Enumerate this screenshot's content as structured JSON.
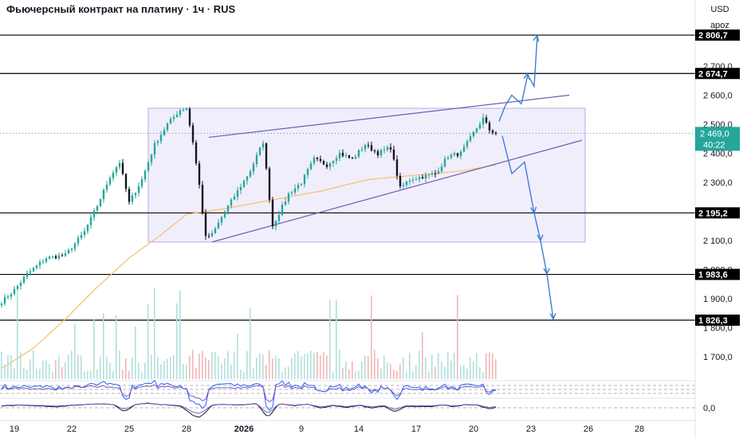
{
  "header": {
    "title": "Фьючерсный контракт на платину · 1ч · RUS",
    "currency": "USD",
    "scale_mode": "apoz"
  },
  "colors": {
    "up": "#26a69a",
    "down": "#131722",
    "ma": "#f5c06b",
    "channel": "#6b5fb5",
    "rect_fill": "#ece8fb",
    "rect_stroke": "#b7abe6",
    "arrow": "#3d7fd6",
    "level": "#000000",
    "last_price_bg": "#26a69a",
    "volume_up": "#b2dfdb",
    "volume_down": "#f5b5b5",
    "osc_price": "#131722",
    "osc_purple": "#7e57c2",
    "osc_blue": "#2962ff"
  },
  "chart_data": {
    "type": "candlestick",
    "y_axis": {
      "min": 1640,
      "max": 2900,
      "ticks": [
        "1 700,0",
        "1 800,0",
        "1 900,0",
        "2 000,0",
        "2 100,0",
        "2 300,0",
        "2 400,0",
        "2 500,0",
        "2 600,0",
        "2 700,0"
      ],
      "tick_values": [
        1700,
        1800,
        1900,
        2000,
        2100,
        2300,
        2400,
        2500,
        2600,
        2700
      ]
    },
    "x_axis": {
      "labels": [
        "19",
        "22",
        "25",
        "28",
        "2026",
        "9",
        "14",
        "17",
        "20",
        "23",
        "26",
        "28"
      ],
      "label_bar_index": [
        4,
        22,
        40,
        58,
        76,
        94,
        112,
        130,
        148,
        166,
        184,
        200
      ]
    },
    "horizontal_levels": [
      {
        "value": 2806.7,
        "label": "2 806,7"
      },
      {
        "value": 2674.7,
        "label": "2 674,7"
      },
      {
        "value": 2195.2,
        "label": "2 195,2"
      },
      {
        "value": 1983.6,
        "label": "1 983,6"
      },
      {
        "value": 1826.3,
        "label": "1 826,3"
      }
    ],
    "last_price": {
      "value": 2469.0,
      "label": "2 469,0",
      "countdown": "40:22"
    },
    "key_points": [
      {
        "i": 0,
        "v": 1890
      },
      {
        "i": 4,
        "v": 1930
      },
      {
        "i": 8,
        "v": 1985
      },
      {
        "i": 14,
        "v": 2040
      },
      {
        "i": 20,
        "v": 2050
      },
      {
        "i": 26,
        "v": 2130
      },
      {
        "i": 30,
        "v": 2220
      },
      {
        "i": 34,
        "v": 2320
      },
      {
        "i": 37,
        "v": 2370
      },
      {
        "i": 40,
        "v": 2230
      },
      {
        "i": 44,
        "v": 2310
      },
      {
        "i": 48,
        "v": 2430
      },
      {
        "i": 52,
        "v": 2500
      },
      {
        "i": 56,
        "v": 2550
      },
      {
        "i": 58,
        "v": 2555
      },
      {
        "i": 60,
        "v": 2440
      },
      {
        "i": 62,
        "v": 2290
      },
      {
        "i": 64,
        "v": 2110
      },
      {
        "i": 66,
        "v": 2120
      },
      {
        "i": 70,
        "v": 2200
      },
      {
        "i": 74,
        "v": 2270
      },
      {
        "i": 78,
        "v": 2340
      },
      {
        "i": 82,
        "v": 2440
      },
      {
        "i": 85,
        "v": 2150
      },
      {
        "i": 90,
        "v": 2260
      },
      {
        "i": 94,
        "v": 2300
      },
      {
        "i": 98,
        "v": 2380
      },
      {
        "i": 102,
        "v": 2360
      },
      {
        "i": 106,
        "v": 2400
      },
      {
        "i": 110,
        "v": 2380
      },
      {
        "i": 114,
        "v": 2430
      },
      {
        "i": 118,
        "v": 2400
      },
      {
        "i": 122,
        "v": 2420
      },
      {
        "i": 125,
        "v": 2280
      },
      {
        "i": 128,
        "v": 2310
      },
      {
        "i": 132,
        "v": 2320
      },
      {
        "i": 136,
        "v": 2330
      },
      {
        "i": 140,
        "v": 2390
      },
      {
        "i": 144,
        "v": 2400
      },
      {
        "i": 148,
        "v": 2470
      },
      {
        "i": 151,
        "v": 2520
      },
      {
        "i": 153,
        "v": 2480
      },
      {
        "i": 155,
        "v": 2469
      }
    ],
    "moving_average": [
      {
        "i": 0,
        "v": 1660
      },
      {
        "i": 10,
        "v": 1730
      },
      {
        "i": 20,
        "v": 1830
      },
      {
        "i": 30,
        "v": 1940
      },
      {
        "i": 40,
        "v": 2040
      },
      {
        "i": 50,
        "v": 2120
      },
      {
        "i": 58,
        "v": 2190
      },
      {
        "i": 70,
        "v": 2210
      },
      {
        "i": 85,
        "v": 2240
      },
      {
        "i": 100,
        "v": 2270
      },
      {
        "i": 115,
        "v": 2310
      },
      {
        "i": 130,
        "v": 2325
      },
      {
        "i": 145,
        "v": 2340
      },
      {
        "i": 155,
        "v": 2360
      }
    ]
  }
}
